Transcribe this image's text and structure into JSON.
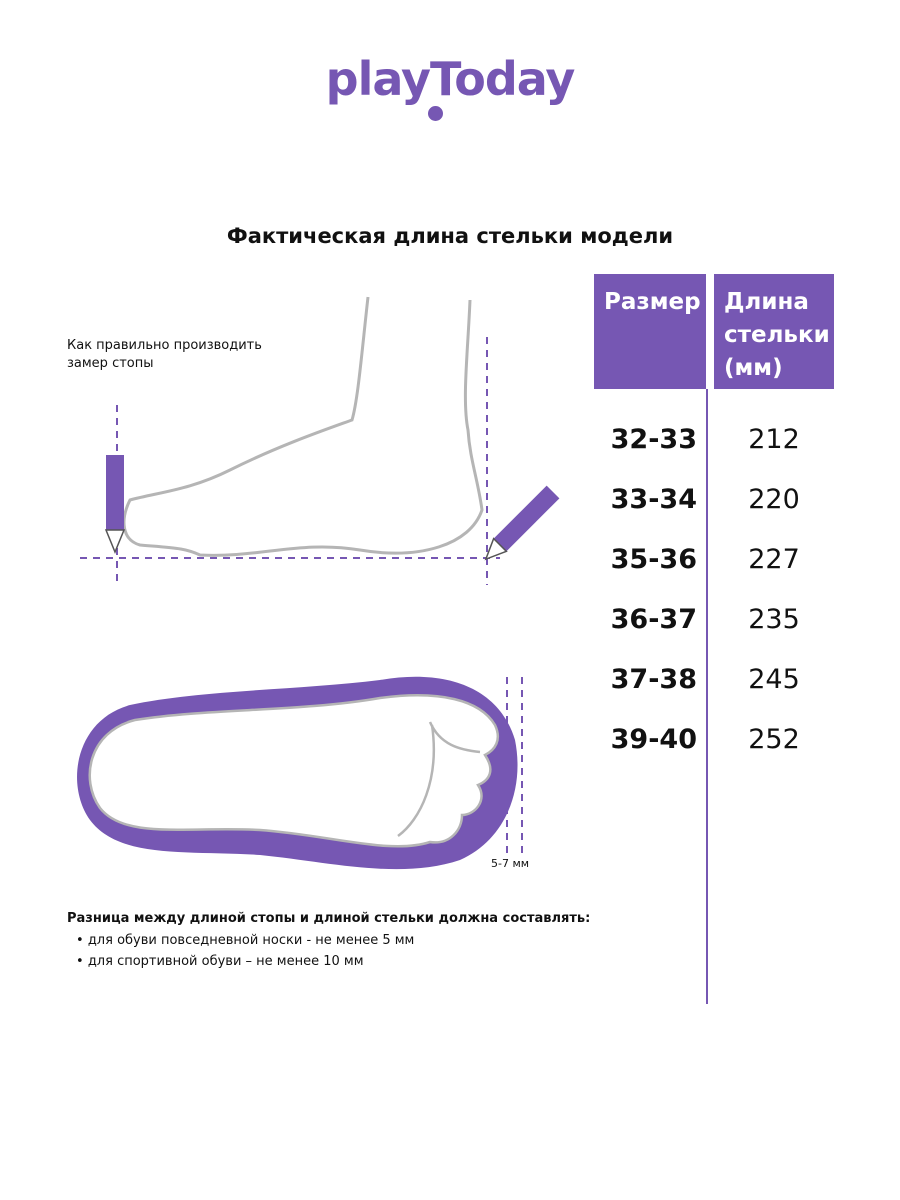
{
  "brand": {
    "logo_text": "playToday",
    "accent_color": "#7657b3"
  },
  "title": "Фактическая длина стельки модели",
  "instruction": [
    "Как правильно производить",
    "замер стопы"
  ],
  "table": {
    "headers": [
      "Размер",
      "Длина стельки (мм)"
    ],
    "rows": [
      {
        "size": "32-33",
        "length": "212"
      },
      {
        "size": "33-34",
        "length": "220"
      },
      {
        "size": "35-36",
        "length": "227"
      },
      {
        "size": "36-37",
        "length": "235"
      },
      {
        "size": "37-38",
        "length": "245"
      },
      {
        "size": "39-40",
        "length": "252"
      }
    ]
  },
  "insole_gap_label": "5-7 мм",
  "note": {
    "heading": "Разница между длиной стопы и длиной стельки должна составлять:",
    "bullets": [
      "для обуви повседневной носки -  не менее 5 мм",
      "для спортивной обуви – не менее 10 мм"
    ]
  },
  "icons": [
    "pencil-icon",
    "foot-side-illustration",
    "insole-illustration"
  ]
}
